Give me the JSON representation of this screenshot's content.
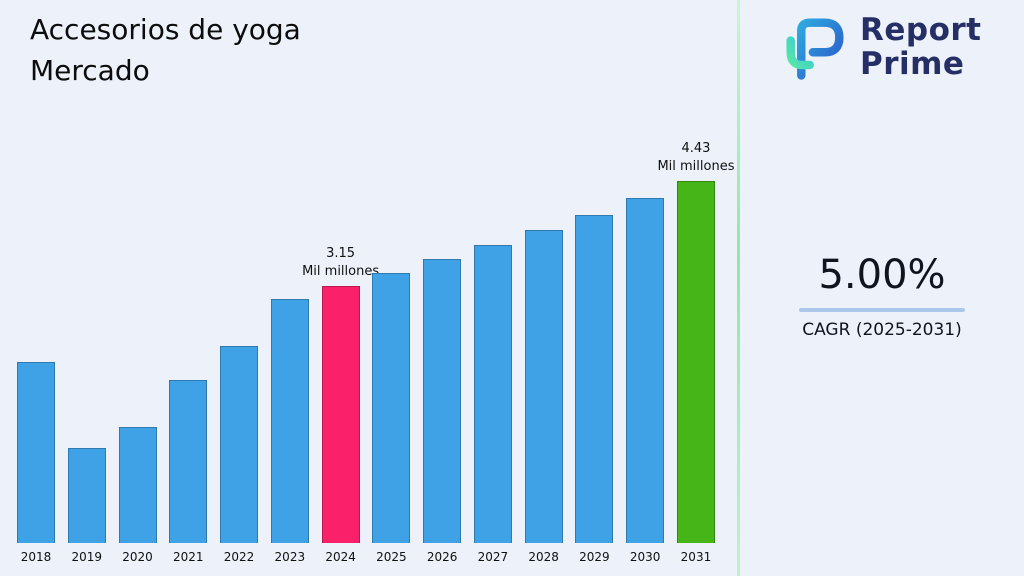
{
  "header": {
    "title_line1": "Accesorios de yoga",
    "title_line2": "Mercado"
  },
  "brand": {
    "name_line1": "Report",
    "name_line2": "Prime",
    "text_color": "#252f66"
  },
  "stats": {
    "cagr_value": "5.00%",
    "cagr_label": "CAGR (2025-2031)",
    "underline_color": "#abc8ec"
  },
  "chart_data": {
    "type": "bar",
    "title": "Accesorios de yoga Mercado",
    "unit": "Mil millones",
    "xlabel": "",
    "ylabel": "",
    "categories": [
      "2018",
      "2019",
      "2020",
      "2021",
      "2022",
      "2023",
      "2024",
      "2025",
      "2026",
      "2027",
      "2028",
      "2029",
      "2030",
      "2031"
    ],
    "values": [
      2.22,
      1.16,
      1.42,
      1.99,
      2.41,
      2.99,
      3.15,
      3.31,
      3.47,
      3.65,
      3.83,
      4.02,
      4.22,
      4.43
    ],
    "ylim": [
      0,
      4.43
    ],
    "grid": false,
    "legend": "none",
    "bar_default_color": "#3fa2e6",
    "highlights": [
      {
        "category": "2024",
        "color": "#fa2069",
        "label": "3.15\nMil millones"
      },
      {
        "category": "2031",
        "color": "#45b517",
        "label": "4.43\nMil millones"
      }
    ]
  }
}
